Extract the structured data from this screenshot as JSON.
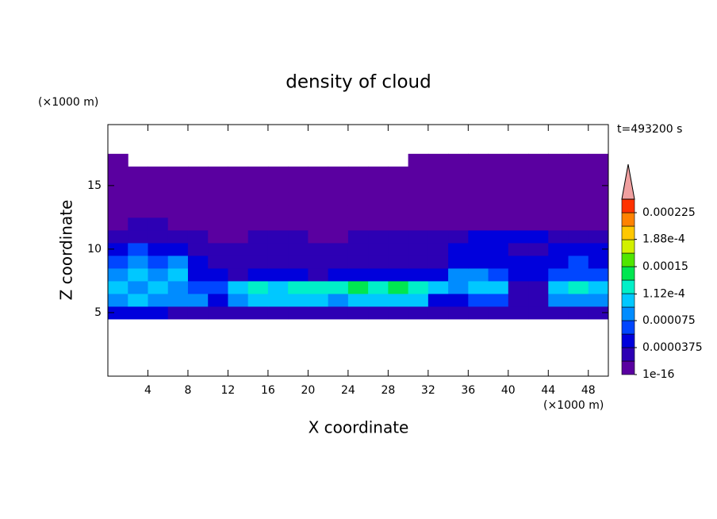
{
  "chart_data": {
    "type": "contour",
    "title": "density of cloud",
    "xlabel": "X coordinate",
    "ylabel": "Z coordinate",
    "x_unit": "(×1000 m)",
    "y_unit": "(×1000 m)",
    "annotation": "t=493200 s",
    "xlim": [
      0,
      50
    ],
    "ylim": [
      0,
      19.8
    ],
    "xticks": [
      4,
      8,
      12,
      16,
      20,
      24,
      28,
      32,
      36,
      40,
      44,
      48
    ],
    "yticks": [
      5,
      10,
      15
    ],
    "x": [
      1,
      3,
      5,
      7,
      9,
      11,
      13,
      15,
      17,
      19,
      21,
      23,
      25,
      27,
      29,
      31,
      33,
      35,
      37,
      39,
      41,
      43,
      45,
      47,
      49
    ],
    "z": [
      5,
      6,
      7,
      8,
      9,
      10,
      11,
      12,
      13,
      14,
      15,
      16,
      17
    ],
    "values": [
      [
        4.5e-05,
        4.5e-05,
        4.5e-05,
        2.5e-05,
        2.5e-05,
        2.5e-05,
        2.5e-05,
        2.5e-05,
        2.5e-05,
        2.5e-05,
        2.5e-05,
        2.5e-05,
        2.5e-05,
        2.5e-05,
        2.5e-05,
        2.5e-05,
        2.5e-05,
        2.5e-05,
        2.5e-05,
        2.5e-05,
        2.5e-05,
        2.5e-05,
        2.5e-05,
        2.5e-05,
        2.5e-05
      ],
      [
        8.5e-05,
        0.000102,
        8.5e-05,
        8.5e-05,
        8.5e-05,
        4.5e-05,
        8.5e-05,
        0.000102,
        0.000102,
        0.000102,
        0.000102,
        8.5e-05,
        0.000102,
        0.000102,
        0.000102,
        0.000102,
        4.5e-05,
        4.5e-05,
        6.5e-05,
        6.5e-05,
        2.5e-05,
        2.5e-05,
        8.5e-05,
        8.5e-05,
        8.5e-05
      ],
      [
        0.000102,
        8.5e-05,
        0.000102,
        8.5e-05,
        6.5e-05,
        6.5e-05,
        0.000102,
        0.000122,
        0.000102,
        0.000122,
        0.000122,
        0.000122,
        0.00014,
        0.000122,
        0.00014,
        0.000122,
        0.000102,
        8.5e-05,
        0.000102,
        0.000102,
        2.5e-05,
        2.5e-05,
        0.000102,
        0.000122,
        0.000102
      ],
      [
        8.5e-05,
        0.000102,
        8.5e-05,
        0.000102,
        4.5e-05,
        4.5e-05,
        2.5e-05,
        4.5e-05,
        4.5e-05,
        4.5e-05,
        2.5e-05,
        4.5e-05,
        4.5e-05,
        4.5e-05,
        4.5e-05,
        4.5e-05,
        4.5e-05,
        8.5e-05,
        8.5e-05,
        6.5e-05,
        4.5e-05,
        4.5e-05,
        6.5e-05,
        6.5e-05,
        6.5e-05
      ],
      [
        6.5e-05,
        8.5e-05,
        6.5e-05,
        8.5e-05,
        4.5e-05,
        2.5e-05,
        2.5e-05,
        2.5e-05,
        2.5e-05,
        2.5e-05,
        2.5e-05,
        2.5e-05,
        2.5e-05,
        2.5e-05,
        2.5e-05,
        2.5e-05,
        2.5e-05,
        4.5e-05,
        4.5e-05,
        4.5e-05,
        4.5e-05,
        4.5e-05,
        4.5e-05,
        6.5e-05,
        4.5e-05
      ],
      [
        4.5e-05,
        6.5e-05,
        4.5e-05,
        4.5e-05,
        2.5e-05,
        2.5e-05,
        2.5e-05,
        2.5e-05,
        2.5e-05,
        2.5e-05,
        2.5e-05,
        2.5e-05,
        2.5e-05,
        2.5e-05,
        2.5e-05,
        2.5e-05,
        2.5e-05,
        4.5e-05,
        4.5e-05,
        4.5e-05,
        2.5e-05,
        2.5e-05,
        4.5e-05,
        4.5e-05,
        4.5e-05
      ],
      [
        2.5e-05,
        2.5e-05,
        2.5e-05,
        2.5e-05,
        2.5e-05,
        1e-06,
        1e-06,
        2.5e-05,
        2.5e-05,
        2.5e-05,
        1e-06,
        1e-06,
        2.5e-05,
        2.5e-05,
        2.5e-05,
        2.5e-05,
        2.5e-05,
        2.5e-05,
        4.5e-05,
        4.5e-05,
        4.5e-05,
        4.5e-05,
        2.5e-05,
        2.5e-05,
        2.5e-05
      ],
      [
        1e-06,
        2.5e-05,
        2.5e-05,
        1e-06,
        1e-06,
        1e-06,
        1e-06,
        1e-06,
        1e-06,
        1e-06,
        1e-06,
        1e-06,
        1e-06,
        1e-06,
        1e-06,
        1e-06,
        1e-06,
        1e-06,
        1e-06,
        1e-06,
        1e-06,
        1e-06,
        1e-06,
        1e-06,
        1e-06
      ],
      [
        1e-06,
        1e-06,
        1e-06,
        1e-06,
        1e-06,
        1e-06,
        1e-06,
        1e-06,
        1e-06,
        1e-06,
        1e-06,
        1e-06,
        1e-06,
        1e-06,
        1e-06,
        1e-06,
        1e-06,
        1e-06,
        1e-06,
        1e-06,
        1e-06,
        1e-06,
        1e-06,
        1e-06,
        1e-06
      ],
      [
        1e-06,
        1e-06,
        1e-06,
        1e-06,
        1e-06,
        1e-06,
        1e-06,
        1e-06,
        1e-06,
        1e-06,
        1e-06,
        1e-06,
        1e-06,
        1e-06,
        1e-06,
        1e-06,
        1e-06,
        1e-06,
        1e-06,
        1e-06,
        1e-06,
        1e-06,
        1e-06,
        1e-06,
        1e-06
      ],
      [
        1e-06,
        1e-06,
        1e-06,
        1e-06,
        1e-06,
        1e-06,
        1e-06,
        1e-06,
        1e-06,
        1e-06,
        1e-06,
        1e-06,
        1e-06,
        1e-06,
        1e-06,
        1e-06,
        1e-06,
        1e-06,
        1e-06,
        1e-06,
        1e-06,
        1e-06,
        1e-06,
        1e-06,
        1e-06
      ],
      [
        1e-06,
        1e-06,
        1e-06,
        1e-06,
        1e-06,
        1e-06,
        1e-06,
        1e-06,
        1e-06,
        1e-06,
        1e-06,
        1e-06,
        1e-06,
        1e-06,
        1e-06,
        1e-06,
        1e-06,
        1e-06,
        1e-06,
        1e-06,
        1e-06,
        1e-06,
        1e-06,
        1e-06,
        1e-06
      ],
      [
        1e-06,
        null,
        null,
        null,
        null,
        null,
        null,
        null,
        null,
        null,
        null,
        null,
        null,
        null,
        null,
        1e-06,
        1e-06,
        1e-06,
        1e-06,
        1e-06,
        1e-06,
        1e-06,
        1e-06,
        1e-06,
        1e-06
      ]
    ],
    "colorbar": {
      "levels": [
        1e-16,
        1.875e-05,
        3.75e-05,
        5.625e-05,
        7.5e-05,
        9.375e-05,
        0.0001125,
        0.00013125,
        0.00015,
        0.00016875,
        0.0001875,
        0.00020625,
        0.000225,
        0.00024375
      ],
      "colors": [
        "#5a00a0",
        "#2d00b4",
        "#0000dc",
        "#0046ff",
        "#008cff",
        "#00c8ff",
        "#00f0c8",
        "#00e650",
        "#50e600",
        "#d2f000",
        "#ffc800",
        "#ff8200",
        "#ff3200"
      ],
      "extend_color": "#f0a0a0",
      "ticks": [
        {
          "value": 1e-16,
          "label": "1e-16"
        },
        3.75e-05,
        7.5e-05,
        {
          "value": 0.000112,
          "label": "1.12e-4"
        },
        0.00015,
        {
          "value": 0.000188,
          "label": "1.88e-4"
        },
        0.000225
      ]
    }
  }
}
